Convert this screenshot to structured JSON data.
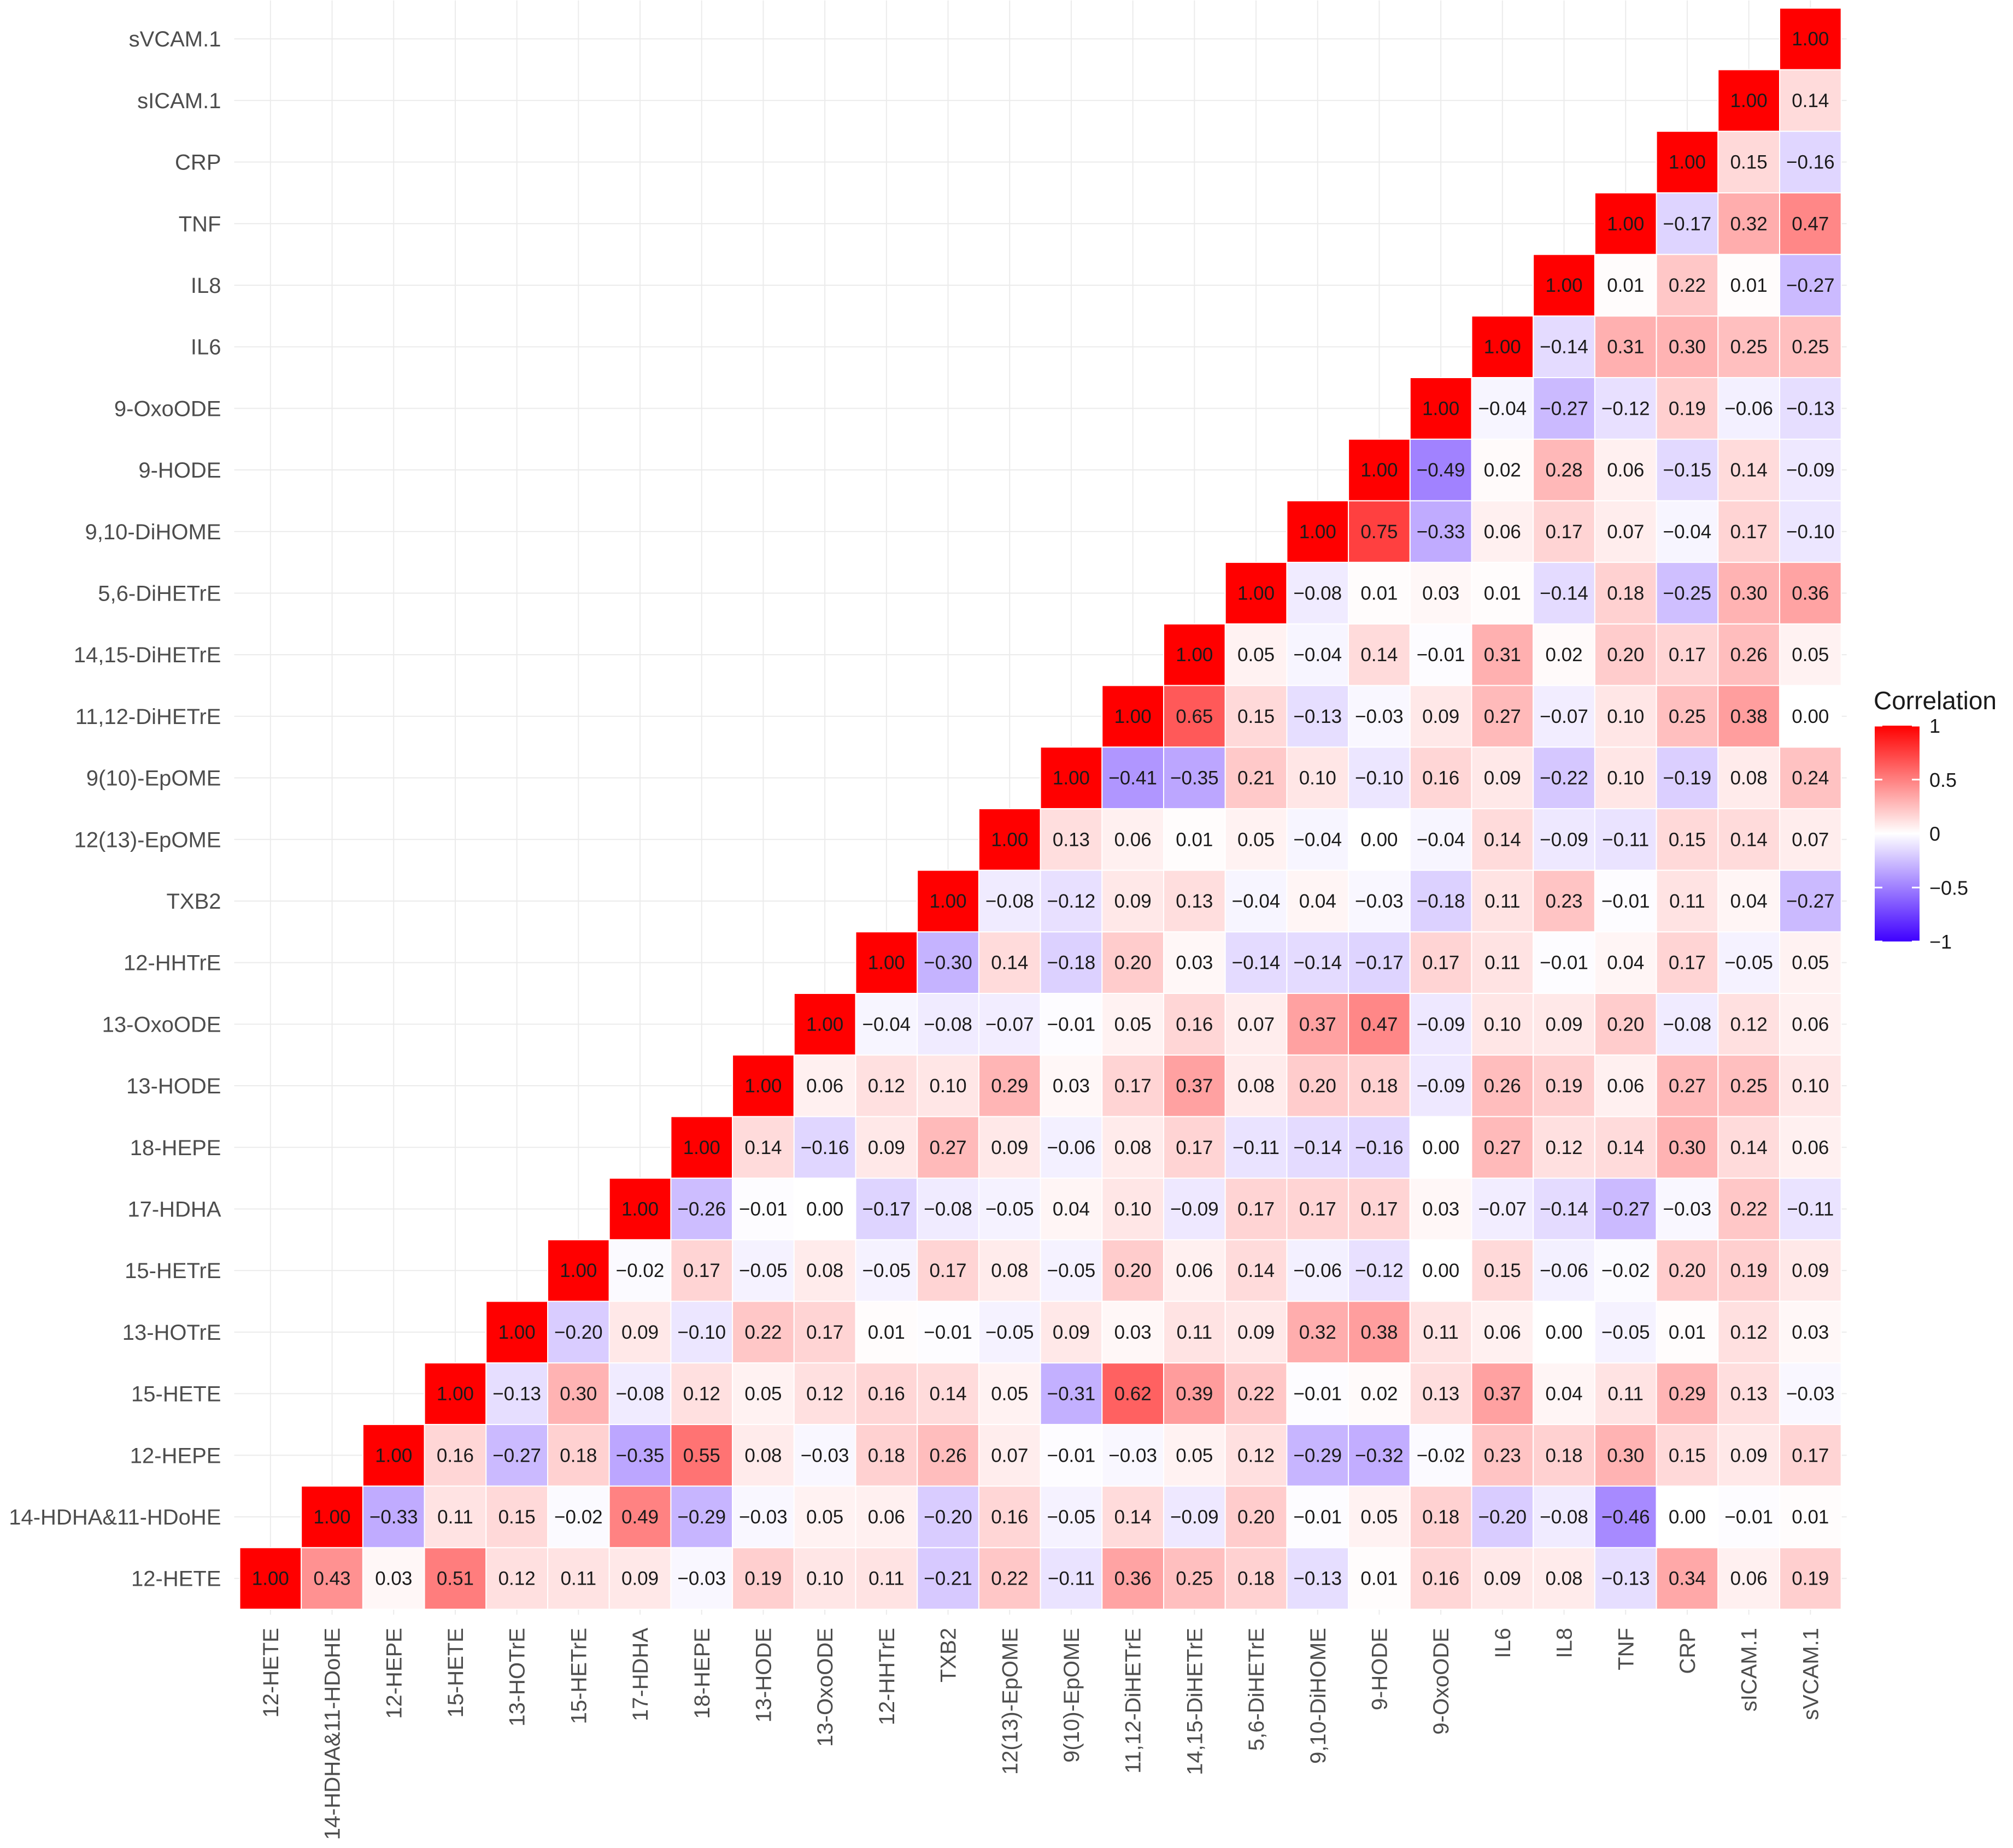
{
  "chart_data": {
    "type": "heatmap",
    "variables": [
      "12-HETE",
      "14-HDHA&11-HDoHE",
      "12-HEPE",
      "15-HETE",
      "13-HOTrE",
      "15-HETrE",
      "17-HDHA",
      "18-HEPE",
      "13-HODE",
      "13-OxoODE",
      "12-HHTrE",
      "TXB2",
      "12(13)-EpOME",
      "9(10)-EpOME",
      "11,12-DiHETrE",
      "14,15-DiHETrE",
      "5,6-DiHETrE",
      "9,10-DiHOME",
      "9-HODE",
      "9-OxoODE",
      "IL6",
      "IL8",
      "TNF",
      "CRP",
      "sICAM.1",
      "sVCAM.1"
    ],
    "triangle": "upper",
    "values": [
      [
        1.0,
        0.43,
        0.03,
        0.51,
        0.12,
        0.11,
        0.09,
        -0.03,
        0.19,
        0.1,
        0.11,
        -0.21,
        0.22,
        -0.11,
        0.36,
        0.25,
        0.18,
        -0.13,
        0.01,
        0.16,
        0.09,
        0.08,
        -0.13,
        0.34,
        0.06,
        0.19
      ],
      [
        1.0,
        -0.33,
        0.11,
        0.15,
        -0.02,
        0.49,
        -0.29,
        -0.03,
        0.05,
        0.06,
        -0.2,
        0.16,
        -0.05,
        0.14,
        -0.09,
        0.2,
        -0.01,
        0.05,
        0.18,
        -0.2,
        -0.08,
        -0.46,
        0.0,
        -0.01,
        0.01
      ],
      [
        1.0,
        0.16,
        -0.27,
        0.18,
        -0.35,
        0.55,
        0.08,
        -0.03,
        0.18,
        0.26,
        0.07,
        -0.01,
        -0.03,
        0.05,
        0.12,
        -0.29,
        -0.32,
        -0.02,
        0.23,
        0.18,
        0.3,
        0.15,
        0.09,
        0.17
      ],
      [
        1.0,
        -0.13,
        0.3,
        -0.08,
        0.12,
        0.05,
        0.12,
        0.16,
        0.14,
        0.05,
        -0.31,
        0.62,
        0.39,
        0.22,
        -0.01,
        0.02,
        0.13,
        0.37,
        0.04,
        0.11,
        0.29,
        0.13,
        -0.03
      ],
      [
        1.0,
        -0.2,
        0.09,
        -0.1,
        0.22,
        0.17,
        0.01,
        -0.01,
        -0.05,
        0.09,
        0.03,
        0.11,
        0.09,
        0.32,
        0.38,
        0.11,
        0.06,
        0.0,
        -0.05,
        0.01,
        0.12,
        0.03
      ],
      [
        1.0,
        -0.02,
        0.17,
        -0.05,
        0.08,
        -0.05,
        0.17,
        0.08,
        -0.05,
        0.2,
        0.06,
        0.14,
        -0.06,
        -0.12,
        0.0,
        0.15,
        -0.06,
        -0.02,
        0.2,
        0.19,
        0.09
      ],
      [
        1.0,
        -0.26,
        -0.01,
        0.0,
        -0.17,
        -0.08,
        -0.05,
        0.04,
        0.1,
        -0.09,
        0.17,
        0.17,
        0.17,
        0.03,
        -0.07,
        -0.14,
        -0.27,
        -0.03,
        0.22,
        -0.11
      ],
      [
        1.0,
        0.14,
        -0.16,
        0.09,
        0.27,
        0.09,
        -0.06,
        0.08,
        0.17,
        -0.11,
        -0.14,
        -0.16,
        0.0,
        0.27,
        0.12,
        0.14,
        0.3,
        0.14,
        0.06
      ],
      [
        1.0,
        0.06,
        0.12,
        0.1,
        0.29,
        0.03,
        0.17,
        0.37,
        0.08,
        0.2,
        0.18,
        -0.09,
        0.26,
        0.19,
        0.06,
        0.27,
        0.25,
        0.1
      ],
      [
        1.0,
        -0.04,
        -0.08,
        -0.07,
        -0.01,
        0.05,
        0.16,
        0.07,
        0.37,
        0.47,
        -0.09,
        0.1,
        0.09,
        0.2,
        -0.08,
        0.12,
        0.06
      ],
      [
        1.0,
        -0.3,
        0.14,
        -0.18,
        0.2,
        0.03,
        -0.14,
        -0.14,
        -0.17,
        0.17,
        0.11,
        -0.01,
        0.04,
        0.17,
        -0.05,
        0.05
      ],
      [
        1.0,
        -0.08,
        -0.12,
        0.09,
        0.13,
        -0.04,
        0.04,
        -0.03,
        -0.18,
        0.11,
        0.23,
        -0.01,
        0.11,
        0.04,
        -0.27
      ],
      [
        1.0,
        0.13,
        0.06,
        0.01,
        0.05,
        -0.04,
        0.0,
        -0.04,
        0.14,
        -0.09,
        -0.11,
        0.15,
        0.14,
        0.07
      ],
      [
        1.0,
        -0.41,
        -0.35,
        0.21,
        0.1,
        -0.1,
        0.16,
        0.09,
        -0.22,
        0.1,
        -0.19,
        0.08,
        0.24
      ],
      [
        1.0,
        0.65,
        0.15,
        -0.13,
        -0.03,
        0.09,
        0.27,
        -0.07,
        0.1,
        0.25,
        0.38,
        0.0
      ],
      [
        1.0,
        0.05,
        -0.04,
        0.14,
        -0.01,
        0.31,
        0.02,
        0.2,
        0.17,
        0.26,
        0.05
      ],
      [
        1.0,
        -0.08,
        0.01,
        0.03,
        0.01,
        -0.14,
        0.18,
        -0.25,
        0.3,
        0.36
      ],
      [
        1.0,
        0.75,
        -0.33,
        0.06,
        0.17,
        0.07,
        -0.04,
        0.17,
        -0.1
      ],
      [
        1.0,
        -0.49,
        0.02,
        0.28,
        0.06,
        -0.15,
        0.14,
        -0.09
      ],
      [
        1.0,
        -0.04,
        -0.27,
        -0.12,
        0.19,
        -0.06,
        -0.13
      ],
      [
        1.0,
        -0.14,
        0.31,
        0.3,
        0.25,
        0.25
      ],
      [
        1.0,
        0.01,
        0.22,
        0.01,
        -0.27
      ],
      [
        1.0,
        -0.17,
        0.32,
        0.47
      ],
      [
        1.0,
        0.15,
        -0.16
      ],
      [
        1.0,
        0.14
      ],
      [
        1.0
      ]
    ],
    "legend": {
      "title": "Correlation",
      "ticks": [
        "1",
        "0.5",
        "0",
        "−0.5",
        "−1"
      ],
      "tick_values": [
        1,
        0.5,
        0,
        -0.5,
        -1
      ],
      "placement": "right"
    },
    "colors": {
      "high": "#FF0000",
      "mid": "#FFFFFF",
      "low": "#3F00FF"
    },
    "grid": true,
    "value_range": [
      -1,
      1
    ]
  }
}
